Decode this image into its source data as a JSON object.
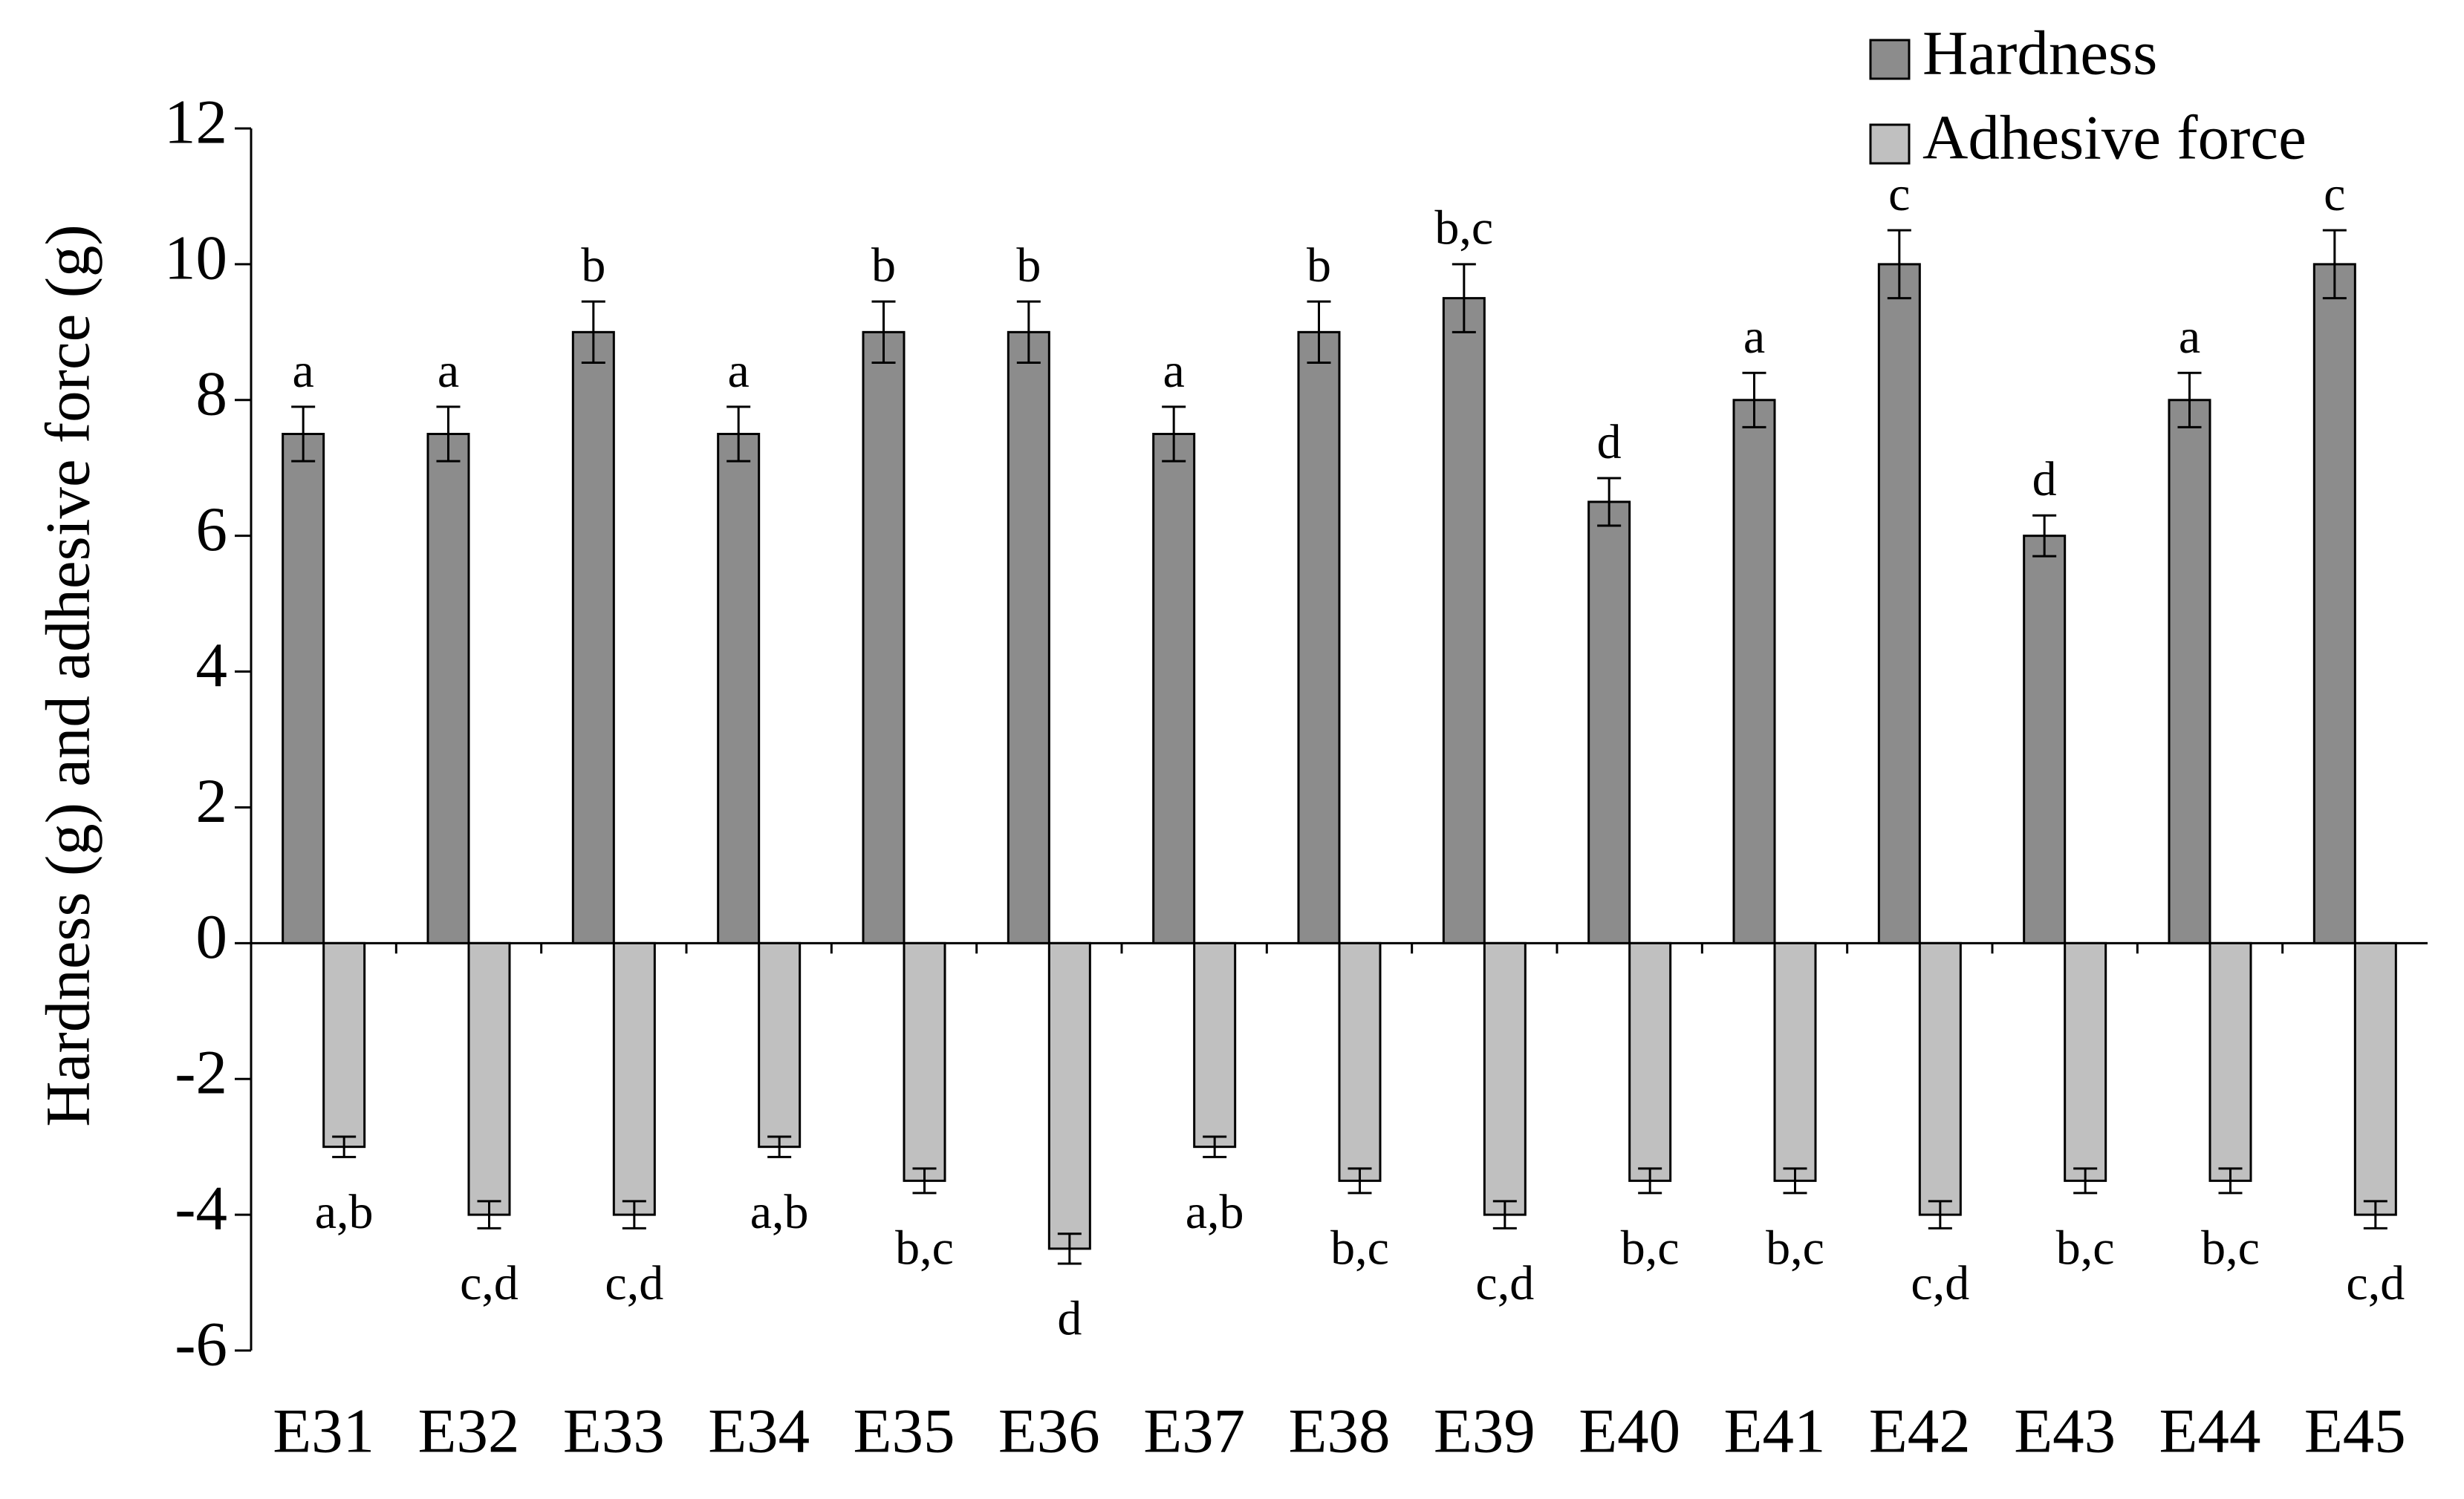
{
  "chart_data": {
    "type": "bar",
    "ylabel": "Hardness (g) and adhesive force (g)",
    "categories": [
      "E31",
      "E32",
      "E33",
      "E34",
      "E35",
      "E36",
      "E37",
      "E38",
      "E39",
      "E40",
      "E41",
      "E42",
      "E43",
      "E44",
      "E45"
    ],
    "series": [
      {
        "name": "Hardness",
        "color": "#8c8c8c",
        "values": [
          7.5,
          7.5,
          9,
          7.5,
          9,
          9,
          7.5,
          9,
          9.5,
          6.5,
          8,
          10,
          6,
          8,
          10
        ],
        "errors": [
          0.4,
          0.4,
          0.45,
          0.4,
          0.45,
          0.45,
          0.4,
          0.45,
          0.5,
          0.35,
          0.4,
          0.5,
          0.3,
          0.4,
          0.5
        ],
        "labels": [
          "a",
          "a",
          "b",
          "a",
          "b",
          "b",
          "a",
          "b",
          "b,c",
          "d",
          "a",
          "c",
          "d",
          "a",
          "c"
        ]
      },
      {
        "name": "Adhesive force",
        "color": "#c0c0c0",
        "values": [
          -3,
          -4,
          -4,
          -3,
          -3.5,
          -4.5,
          -3,
          -3.5,
          -4,
          -3.5,
          -3.5,
          -4,
          -3.5,
          -3.5,
          -4
        ],
        "errors": [
          0.15,
          0.2,
          0.2,
          0.15,
          0.18,
          0.22,
          0.15,
          0.18,
          0.2,
          0.18,
          0.18,
          0.2,
          0.18,
          0.18,
          0.2
        ],
        "labels": [
          "a,b",
          "c,d",
          "c,d",
          "a,b",
          "b,c",
          "d",
          "a,b",
          "b,c",
          "c,d",
          "b,c",
          "b,c",
          "c,d",
          "b,c",
          "b,c",
          "c,d"
        ]
      }
    ],
    "ylim": [
      -6,
      12
    ],
    "yticks": [
      -6,
      -4,
      -2,
      0,
      2,
      4,
      6,
      8,
      10,
      12
    ],
    "grid": false,
    "legend": "top-right"
  }
}
